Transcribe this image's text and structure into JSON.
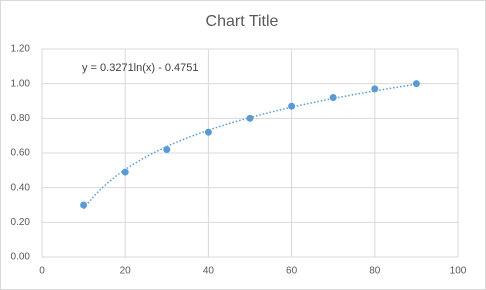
{
  "chart_data": {
    "type": "scatter",
    "title": "Chart Title",
    "x": [
      10,
      20,
      30,
      40,
      50,
      60,
      70,
      80,
      90
    ],
    "series": [
      {
        "color": "#5b9bd5",
        "values": [
          0.3,
          0.49,
          0.62,
          0.72,
          0.8,
          0.87,
          0.92,
          0.97,
          1.0
        ]
      }
    ],
    "trendline": {
      "type": "logarithmic",
      "coefficients": [
        0.3271,
        -0.4751
      ],
      "label": "y = 0.3271ln(x) - 0.4751"
    },
    "xlim": [
      0,
      100
    ],
    "xticks": [
      0,
      20,
      40,
      60,
      80,
      100
    ],
    "ylim": [
      0,
      1.2
    ],
    "yticks": [
      {
        "value": 0,
        "label": "0.00"
      },
      {
        "value": 0.2,
        "label": "0.20"
      },
      {
        "value": 0.4,
        "label": "0.40"
      },
      {
        "value": 0.6,
        "label": "0.60"
      },
      {
        "value": 0.8,
        "label": "0.80"
      },
      {
        "value": 1.0,
        "label": "1.00"
      },
      {
        "value": 1.2,
        "label": "1.20"
      }
    ],
    "grid": true
  }
}
